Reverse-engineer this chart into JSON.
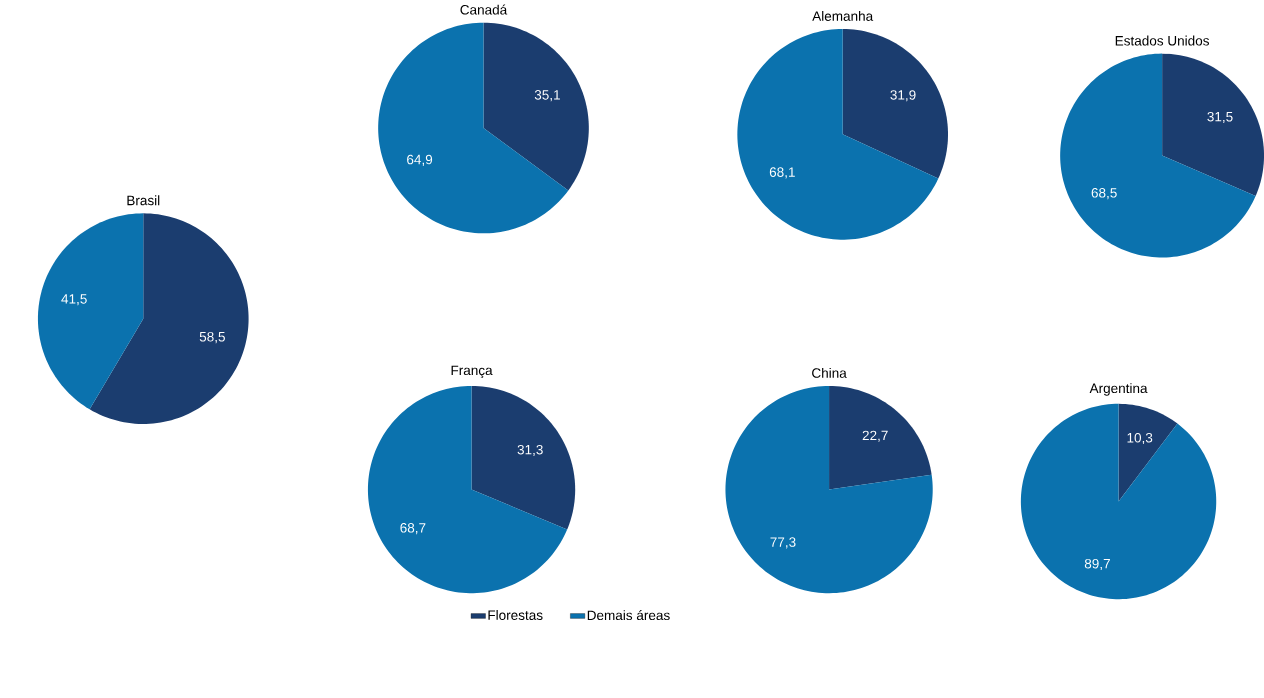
{
  "chart_data": [
    {
      "type": "pie",
      "title": "Brasil",
      "categories": [
        "Florestas",
        "Demais áreas"
      ],
      "values": [
        58.5,
        41.5
      ],
      "colors": [
        "#1b3d6f",
        "#0b72ae"
      ],
      "value_labels": [
        "58,5",
        "41,5"
      ],
      "legend": "bottom"
    },
    {
      "type": "pie",
      "title": "Canadá",
      "values": [
        35.1,
        64.9
      ],
      "colors": [
        "#1b3d6f",
        "#0b72ae"
      ],
      "value_labels": [
        "35,1",
        "64,9"
      ]
    },
    {
      "type": "pie",
      "title": "Alemanha",
      "values": [
        31.9,
        68.1
      ],
      "colors": [
        "#1b3d6f",
        "#0b72ae"
      ],
      "value_labels": [
        "31,9",
        "68,1"
      ]
    },
    {
      "type": "pie",
      "title": "Estados Unidos",
      "values": [
        31.5,
        68.5
      ],
      "colors": [
        "#1b3d6f",
        "#0b72ae"
      ],
      "value_labels": [
        "31,5",
        "68,5"
      ]
    },
    {
      "type": "pie",
      "title": "França",
      "values": [
        31.3,
        68.7
      ],
      "colors": [
        "#1b3d6f",
        "#0b72ae"
      ],
      "value_labels": [
        "31,3",
        "68,7"
      ]
    },
    {
      "type": "pie",
      "title": "China",
      "values": [
        22.7,
        77.3
      ],
      "colors": [
        "#1b3d6f",
        "#0b72ae"
      ],
      "value_labels": [
        "22,7",
        "77,3"
      ]
    },
    {
      "type": "pie",
      "title": "Argentina",
      "values": [
        10.3,
        89.7
      ],
      "colors": [
        "#1b3d6f",
        "#0b72ae"
      ],
      "value_labels": [
        "10,3",
        "89,7"
      ]
    }
  ]
}
